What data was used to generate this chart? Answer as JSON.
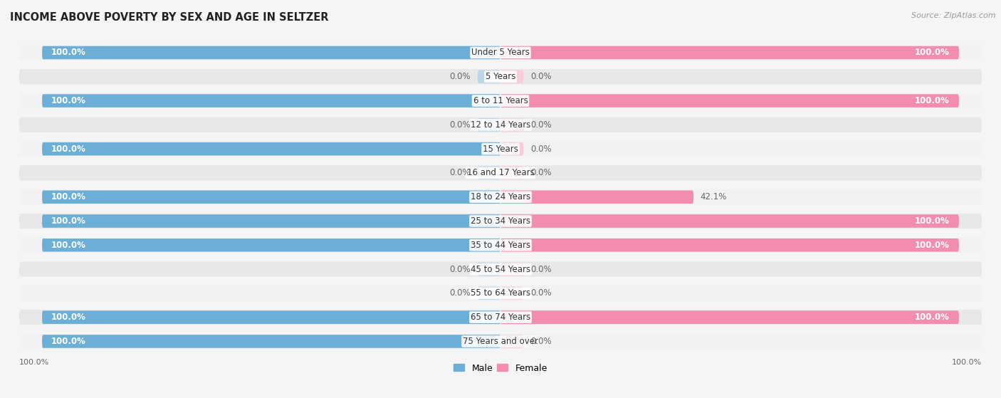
{
  "title": "INCOME ABOVE POVERTY BY SEX AND AGE IN SELTZER",
  "source": "Source: ZipAtlas.com",
  "categories": [
    "Under 5 Years",
    "5 Years",
    "6 to 11 Years",
    "12 to 14 Years",
    "15 Years",
    "16 and 17 Years",
    "18 to 24 Years",
    "25 to 34 Years",
    "35 to 44 Years",
    "45 to 54 Years",
    "55 to 64 Years",
    "65 to 74 Years",
    "75 Years and over"
  ],
  "male": [
    100.0,
    0.0,
    100.0,
    0.0,
    100.0,
    0.0,
    100.0,
    100.0,
    100.0,
    0.0,
    0.0,
    100.0,
    100.0
  ],
  "female": [
    100.0,
    0.0,
    100.0,
    0.0,
    0.0,
    0.0,
    42.1,
    100.0,
    100.0,
    0.0,
    0.0,
    100.0,
    0.0
  ],
  "male_color": "#6baed6",
  "female_color": "#f28cb1",
  "male_color_light": "#b8d7eb",
  "female_color_light": "#f9cdd8",
  "row_bg_odd": "#f2f2f2",
  "row_bg_even": "#e8e8e8",
  "fig_bg": "#f5f5f5",
  "label_fontsize": 8.5,
  "title_fontsize": 10.5,
  "max_val": 100.0,
  "stub": 5.0
}
